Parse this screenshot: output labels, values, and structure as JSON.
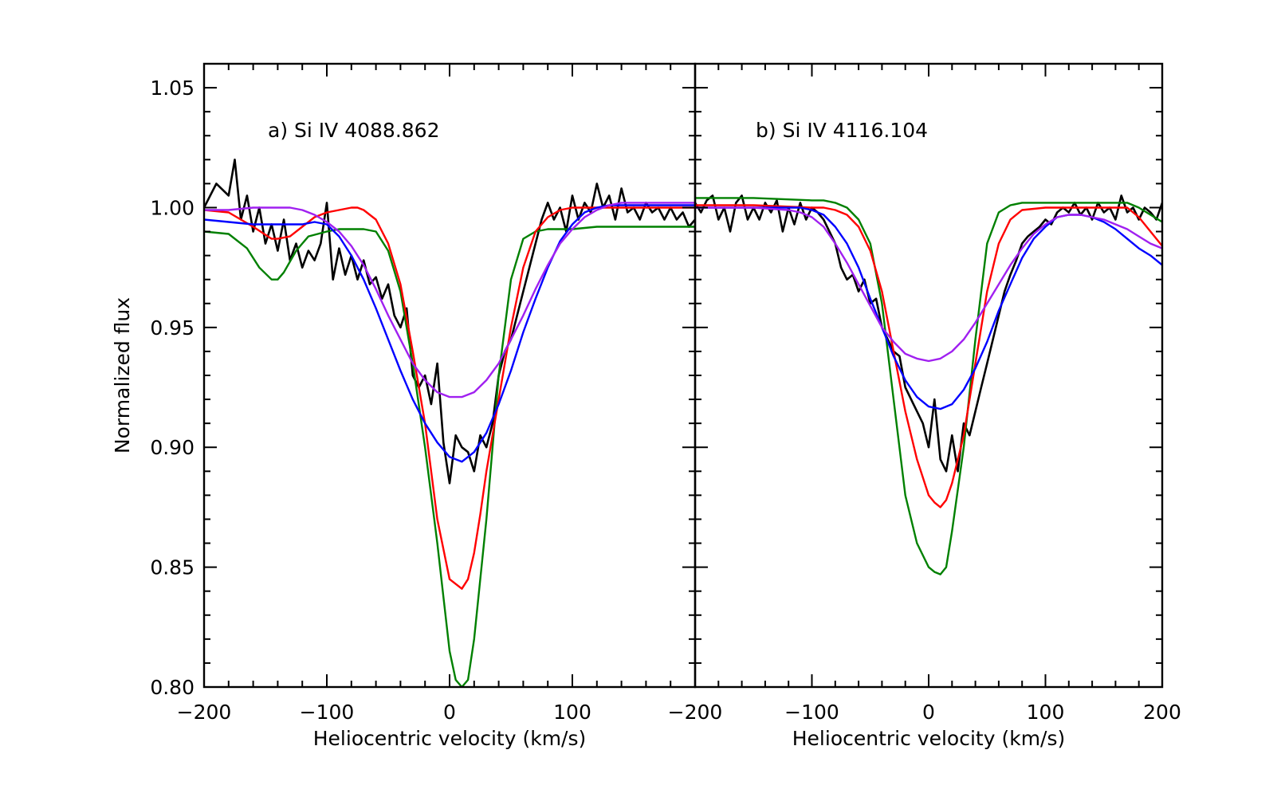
{
  "chart_data": [
    {
      "type": "line",
      "title": "a) Si IV 4088.862",
      "xlabel": "Heliocentric velocity (km/s)",
      "ylabel": "Normalized flux",
      "xlim": [
        -200,
        200
      ],
      "ylim": [
        0.8,
        1.06
      ],
      "x_ticks": [
        -200,
        -100,
        0,
        100
      ],
      "x_tick_labels": [
        "−200",
        "−100",
        "0",
        "100"
      ],
      "y_ticks": [
        0.8,
        0.85,
        0.9,
        0.95,
        1.0,
        1.05
      ],
      "y_tick_labels": [
        "0.80",
        "0.85",
        "0.90",
        "0.95",
        "1.00",
        "1.05"
      ],
      "grid": false,
      "series": [
        {
          "color": "#000000",
          "style": "observed",
          "x": [
            -200,
            -190,
            -180,
            -175,
            -170,
            -165,
            -160,
            -155,
            -150,
            -145,
            -140,
            -135,
            -130,
            -125,
            -120,
            -115,
            -110,
            -105,
            -100,
            -95,
            -90,
            -85,
            -80,
            -75,
            -70,
            -65,
            -60,
            -55,
            -50,
            -45,
            -40,
            -35,
            -30,
            -25,
            -20,
            -15,
            -10,
            -5,
            0,
            5,
            10,
            15,
            20,
            25,
            30,
            35,
            40,
            45,
            50,
            55,
            60,
            65,
            70,
            75,
            80,
            85,
            90,
            95,
            100,
            105,
            110,
            115,
            120,
            125,
            130,
            135,
            140,
            145,
            150,
            155,
            160,
            165,
            170,
            175,
            180,
            185,
            190,
            195,
            200
          ],
          "y": [
            1.0,
            1.01,
            1.005,
            1.02,
            0.995,
            1.005,
            0.99,
            1.0,
            0.985,
            0.993,
            0.982,
            0.995,
            0.978,
            0.985,
            0.975,
            0.982,
            0.978,
            0.985,
            1.002,
            0.97,
            0.983,
            0.972,
            0.98,
            0.97,
            0.978,
            0.968,
            0.971,
            0.962,
            0.968,
            0.955,
            0.95,
            0.958,
            0.93,
            0.925,
            0.93,
            0.918,
            0.935,
            0.902,
            0.885,
            0.905,
            0.9,
            0.898,
            0.89,
            0.905,
            0.9,
            0.91,
            0.93,
            0.94,
            0.945,
            0.955,
            0.965,
            0.975,
            0.985,
            0.995,
            1.002,
            0.995,
            1.0,
            0.99,
            1.005,
            0.995,
            1.002,
            0.998,
            1.01,
            1.0,
            1.005,
            0.995,
            1.008,
            0.998,
            1.0,
            0.995,
            1.002,
            0.998,
            1.0,
            0.995,
            1.0,
            0.995,
            0.998,
            0.992,
            0.995
          ]
        },
        {
          "color": "#008000",
          "x": [
            -200,
            -180,
            -165,
            -155,
            -145,
            -140,
            -135,
            -125,
            -115,
            -100,
            -90,
            -80,
            -70,
            -60,
            -50,
            -40,
            -30,
            -20,
            -10,
            0,
            5,
            10,
            15,
            20,
            30,
            40,
            50,
            60,
            70,
            80,
            90,
            100,
            120,
            140,
            160,
            180,
            200
          ],
          "y": [
            0.99,
            0.989,
            0.983,
            0.975,
            0.97,
            0.97,
            0.973,
            0.982,
            0.988,
            0.99,
            0.991,
            0.991,
            0.991,
            0.99,
            0.982,
            0.965,
            0.935,
            0.9,
            0.86,
            0.815,
            0.803,
            0.8,
            0.803,
            0.82,
            0.87,
            0.93,
            0.97,
            0.987,
            0.99,
            0.991,
            0.991,
            0.991,
            0.992,
            0.992,
            0.992,
            0.992,
            0.992
          ]
        },
        {
          "color": "#ff0000",
          "x": [
            -200,
            -180,
            -160,
            -145,
            -140,
            -130,
            -120,
            -110,
            -100,
            -90,
            -80,
            -75,
            -70,
            -60,
            -50,
            -40,
            -30,
            -20,
            -10,
            0,
            5,
            10,
            15,
            20,
            25,
            30,
            40,
            50,
            60,
            70,
            80,
            90,
            100,
            120,
            140,
            160,
            180,
            200
          ],
          "y": [
            0.999,
            0.998,
            0.992,
            0.987,
            0.987,
            0.988,
            0.992,
            0.996,
            0.998,
            0.999,
            1.0,
            1.0,
            0.999,
            0.995,
            0.985,
            0.968,
            0.94,
            0.91,
            0.87,
            0.845,
            0.843,
            0.841,
            0.845,
            0.856,
            0.872,
            0.89,
            0.92,
            0.95,
            0.975,
            0.99,
            0.996,
            0.999,
            1.0,
            1.0,
            1.0,
            1.0,
            1.0,
            1.0
          ]
        },
        {
          "color": "#0000ff",
          "x": [
            -200,
            -180,
            -160,
            -140,
            -120,
            -110,
            -100,
            -90,
            -80,
            -70,
            -60,
            -50,
            -40,
            -30,
            -20,
            -10,
            0,
            10,
            20,
            30,
            40,
            50,
            60,
            70,
            80,
            90,
            100,
            110,
            120,
            130,
            140,
            150,
            160,
            170,
            180,
            190,
            200
          ],
          "y": [
            0.995,
            0.994,
            0.993,
            0.993,
            0.993,
            0.994,
            0.993,
            0.988,
            0.98,
            0.97,
            0.958,
            0.945,
            0.932,
            0.92,
            0.91,
            0.902,
            0.896,
            0.894,
            0.898,
            0.906,
            0.918,
            0.932,
            0.948,
            0.962,
            0.975,
            0.986,
            0.993,
            0.998,
            1.0,
            1.001,
            1.001,
            1.001,
            1.001,
            1.001,
            1.001,
            1.001,
            1.001
          ]
        },
        {
          "color": "#a020f0",
          "x": [
            -200,
            -180,
            -160,
            -140,
            -130,
            -120,
            -110,
            -100,
            -90,
            -80,
            -70,
            -60,
            -50,
            -40,
            -30,
            -20,
            -10,
            0,
            10,
            20,
            30,
            40,
            50,
            60,
            70,
            80,
            90,
            100,
            110,
            120,
            130,
            140,
            150,
            160,
            170,
            180,
            190,
            200
          ],
          "y": [
            0.999,
            0.999,
            1.0,
            1.0,
            1.0,
            0.999,
            0.997,
            0.994,
            0.99,
            0.984,
            0.976,
            0.966,
            0.955,
            0.945,
            0.935,
            0.928,
            0.923,
            0.921,
            0.921,
            0.923,
            0.928,
            0.935,
            0.945,
            0.955,
            0.966,
            0.976,
            0.985,
            0.991,
            0.996,
            0.999,
            1.001,
            1.002,
            1.002,
            1.002,
            1.002,
            1.002,
            1.002,
            1.002
          ]
        }
      ]
    },
    {
      "type": "line",
      "title": "b) Si IV 4116.104",
      "xlabel": "Heliocentric velocity (km/s)",
      "ylabel": "",
      "xlim": [
        -200,
        200
      ],
      "ylim": [
        0.8,
        1.06
      ],
      "x_ticks": [
        -200,
        -100,
        0,
        100,
        200
      ],
      "x_tick_labels": [
        "−200",
        "−100",
        "0",
        "100",
        "200"
      ],
      "y_ticks": [
        0.8,
        0.85,
        0.9,
        0.95,
        1.0,
        1.05
      ],
      "y_tick_labels": [],
      "grid": false,
      "series": [
        {
          "color": "#000000",
          "style": "observed",
          "x": [
            -200,
            -195,
            -190,
            -185,
            -180,
            -175,
            -170,
            -165,
            -160,
            -155,
            -150,
            -145,
            -140,
            -135,
            -130,
            -125,
            -120,
            -115,
            -110,
            -105,
            -100,
            -95,
            -90,
            -85,
            -80,
            -75,
            -70,
            -65,
            -60,
            -55,
            -50,
            -45,
            -40,
            -35,
            -30,
            -25,
            -20,
            -15,
            -10,
            -5,
            0,
            5,
            10,
            15,
            20,
            25,
            30,
            35,
            40,
            45,
            50,
            55,
            60,
            65,
            70,
            75,
            80,
            85,
            90,
            95,
            100,
            105,
            110,
            115,
            120,
            125,
            130,
            135,
            140,
            145,
            150,
            155,
            160,
            165,
            170,
            175,
            180,
            185,
            190,
            195,
            200
          ],
          "y": [
            1.002,
            0.998,
            1.003,
            1.005,
            0.995,
            1.0,
            0.99,
            1.002,
            1.005,
            0.995,
            1.0,
            0.995,
            1.002,
            0.998,
            1.003,
            0.99,
            1.0,
            0.993,
            1.002,
            0.995,
            1.0,
            0.998,
            0.995,
            0.99,
            0.985,
            0.975,
            0.97,
            0.972,
            0.965,
            0.97,
            0.96,
            0.962,
            0.95,
            0.945,
            0.94,
            0.938,
            0.925,
            0.92,
            0.915,
            0.91,
            0.9,
            0.92,
            0.895,
            0.89,
            0.905,
            0.89,
            0.91,
            0.905,
            0.915,
            0.925,
            0.935,
            0.945,
            0.955,
            0.965,
            0.972,
            0.978,
            0.985,
            0.988,
            0.99,
            0.992,
            0.995,
            0.993,
            0.998,
            1.0,
            0.998,
            1.002,
            0.997,
            1.0,
            0.995,
            1.002,
            0.998,
            1.0,
            0.995,
            1.005,
            0.998,
            1.0,
            0.995,
            1.0,
            0.998,
            0.995,
            1.002
          ]
        },
        {
          "color": "#008000",
          "x": [
            -200,
            -150,
            -100,
            -90,
            -80,
            -70,
            -60,
            -50,
            -40,
            -30,
            -20,
            -10,
            0,
            5,
            10,
            15,
            20,
            30,
            40,
            50,
            60,
            70,
            80,
            100,
            130,
            150,
            170,
            180,
            190,
            200
          ],
          "y": [
            1.004,
            1.004,
            1.003,
            1.003,
            1.002,
            1.0,
            0.995,
            0.985,
            0.96,
            0.92,
            0.88,
            0.86,
            0.85,
            0.848,
            0.847,
            0.85,
            0.865,
            0.9,
            0.945,
            0.985,
            0.998,
            1.001,
            1.002,
            1.002,
            1.002,
            1.002,
            1.002,
            1.0,
            0.997,
            0.994
          ]
        },
        {
          "color": "#ff0000",
          "x": [
            -200,
            -150,
            -100,
            -90,
            -80,
            -70,
            -60,
            -50,
            -40,
            -30,
            -20,
            -10,
            0,
            5,
            10,
            15,
            20,
            30,
            40,
            50,
            60,
            70,
            80,
            100,
            130,
            150,
            170,
            180,
            190,
            200
          ],
          "y": [
            1.001,
            1.001,
            1.0,
            1.0,
            0.999,
            0.997,
            0.992,
            0.982,
            0.965,
            0.94,
            0.915,
            0.895,
            0.88,
            0.877,
            0.875,
            0.878,
            0.885,
            0.905,
            0.935,
            0.965,
            0.985,
            0.995,
            0.999,
            1.0,
            1.0,
            1.0,
            1.0,
            0.996,
            0.99,
            0.984
          ]
        },
        {
          "color": "#0000ff",
          "x": [
            -200,
            -150,
            -110,
            -100,
            -90,
            -80,
            -70,
            -60,
            -50,
            -40,
            -30,
            -20,
            -10,
            0,
            10,
            20,
            30,
            40,
            50,
            60,
            70,
            80,
            90,
            100,
            110,
            120,
            130,
            140,
            150,
            160,
            170,
            180,
            190,
            200
          ],
          "y": [
            1.0,
            1.0,
            1.0,
            0.999,
            0.997,
            0.992,
            0.985,
            0.975,
            0.962,
            0.95,
            0.938,
            0.928,
            0.921,
            0.917,
            0.916,
            0.918,
            0.924,
            0.933,
            0.944,
            0.957,
            0.968,
            0.979,
            0.987,
            0.992,
            0.996,
            0.997,
            0.997,
            0.996,
            0.994,
            0.991,
            0.987,
            0.983,
            0.98,
            0.976
          ]
        },
        {
          "color": "#a020f0",
          "x": [
            -200,
            -150,
            -120,
            -110,
            -100,
            -90,
            -80,
            -70,
            -60,
            -50,
            -40,
            -30,
            -20,
            -10,
            0,
            10,
            20,
            30,
            40,
            50,
            60,
            70,
            80,
            90,
            100,
            110,
            120,
            130,
            140,
            150,
            160,
            170,
            180,
            190,
            200
          ],
          "y": [
            1.0,
            1.0,
            0.999,
            0.998,
            0.996,
            0.992,
            0.985,
            0.977,
            0.968,
            0.959,
            0.95,
            0.944,
            0.939,
            0.937,
            0.936,
            0.937,
            0.94,
            0.945,
            0.952,
            0.96,
            0.968,
            0.976,
            0.983,
            0.989,
            0.993,
            0.996,
            0.997,
            0.997,
            0.996,
            0.995,
            0.993,
            0.991,
            0.988,
            0.985,
            0.983
          ]
        }
      ]
    }
  ]
}
